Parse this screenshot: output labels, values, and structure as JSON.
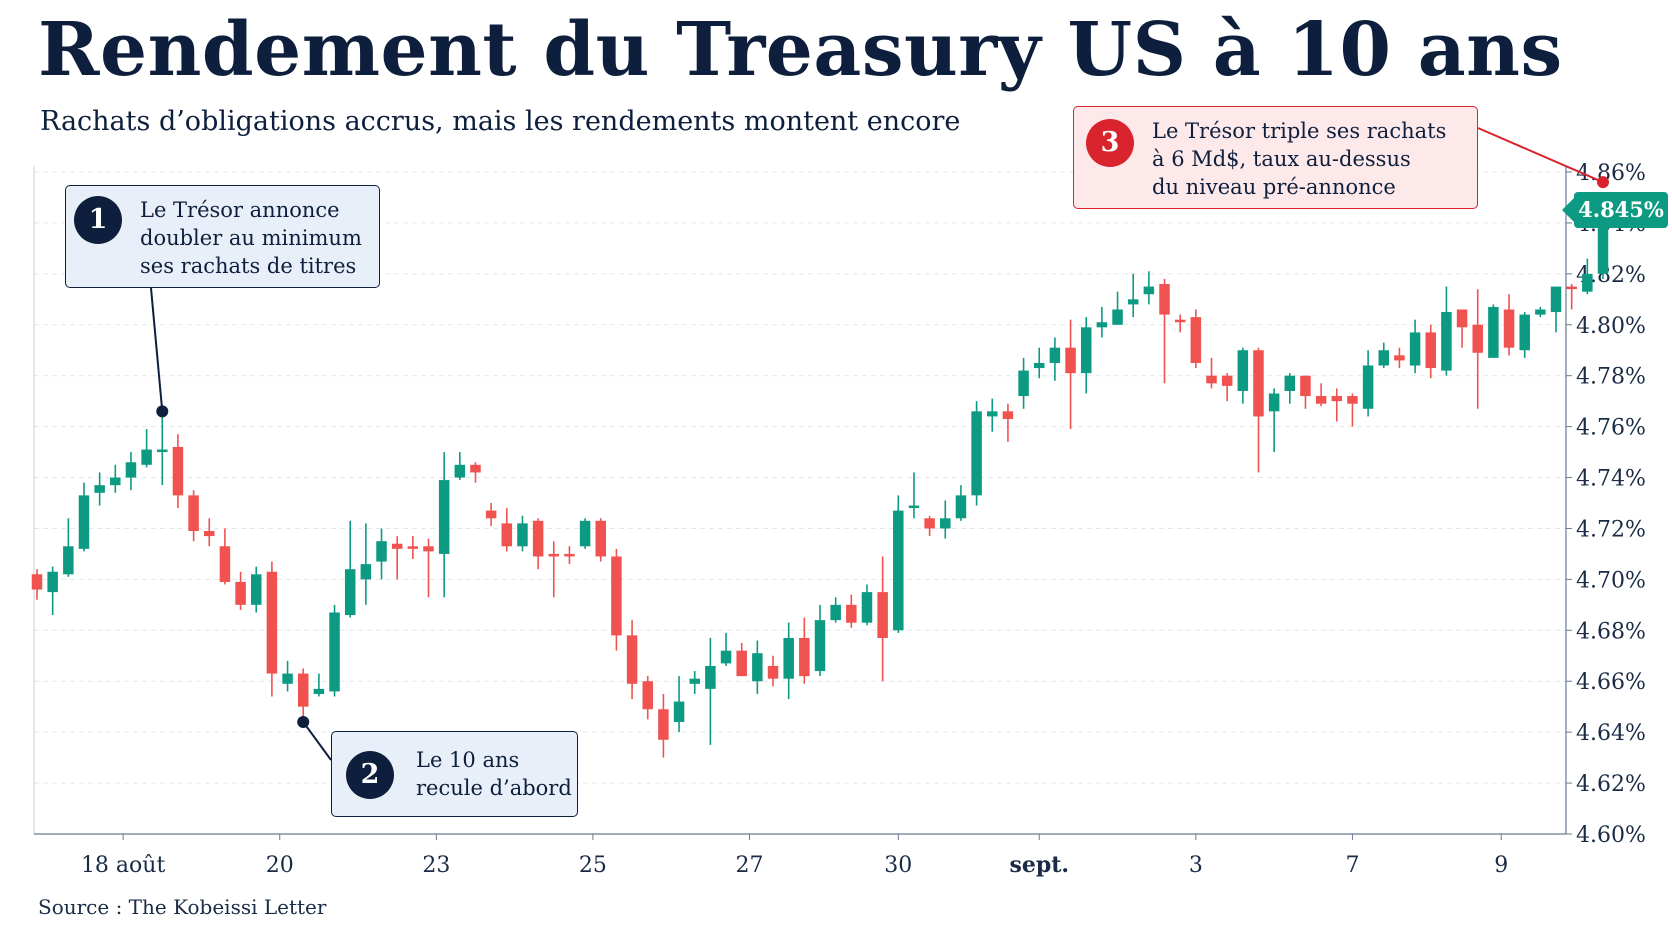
{
  "title": "Rendement du Treasury US à 10 ans",
  "subtitle": "Rachats d’obligations accrus, mais les rendements montent encore",
  "source": "Source : The Kobeissi Letter",
  "last_value_label": "4.845%",
  "colors": {
    "up": "#0d9a82",
    "down": "#f0524f",
    "navy": "#0d1f3c",
    "accent_red": "#d9232d"
  },
  "callouts": [
    {
      "num": "1",
      "text": "Le Trésor annonce\ndoubler au minimum\nses rachats de titres"
    },
    {
      "num": "2",
      "text": "Le 10 ans\nrecule d’abord"
    },
    {
      "num": "3",
      "text": "Le Trésor triple ses rachats\nà 6 Md$, taux au-dessus\ndu niveau pré-annonce"
    }
  ],
  "chart_data": {
    "type": "candlestick",
    "title": "Rendement du Treasury US à 10 ans",
    "subtitle": "Rachats d’obligations accrus, mais les rendements montent encore",
    "y_unit": "%",
    "ylim": [
      4.6,
      4.86
    ],
    "y_ticks": [
      "4.60%",
      "4.62%",
      "4.64%",
      "4.66%",
      "4.68%",
      "4.70%",
      "4.72%",
      "4.74%",
      "4.76%",
      "4.78%",
      "4.80%",
      "4.82%",
      "4.84%",
      "4.86%"
    ],
    "x_labels": [
      {
        "label": "18 août",
        "index": 5.5,
        "bold": false
      },
      {
        "label": "20",
        "index": 15.5,
        "bold": false
      },
      {
        "label": "23",
        "index": 25.5,
        "bold": false
      },
      {
        "label": "25",
        "index": 35.5,
        "bold": false
      },
      {
        "label": "27",
        "index": 45.5,
        "bold": false
      },
      {
        "label": "30",
        "index": 55,
        "bold": false
      },
      {
        "label": "sept.",
        "index": 64,
        "bold": true
      },
      {
        "label": "3",
        "index": 74,
        "bold": false
      },
      {
        "label": "7",
        "index": 84,
        "bold": false
      },
      {
        "label": "9",
        "index": 93.5,
        "bold": false
      }
    ],
    "candles": [
      [
        4.702,
        4.696,
        4.704,
        4.692
      ],
      [
        4.695,
        4.703,
        4.705,
        4.686
      ],
      [
        4.702,
        4.713,
        4.724,
        4.701
      ],
      [
        4.712,
        4.733,
        4.738,
        4.711
      ],
      [
        4.734,
        4.737,
        4.742,
        4.729
      ],
      [
        4.737,
        4.74,
        4.745,
        4.734
      ],
      [
        4.74,
        4.746,
        4.75,
        4.735
      ],
      [
        4.745,
        4.751,
        4.759,
        4.744
      ],
      [
        4.75,
        4.751,
        4.766,
        4.737
      ],
      [
        4.752,
        4.733,
        4.757,
        4.728
      ],
      [
        4.733,
        4.719,
        4.735,
        4.715
      ],
      [
        4.719,
        4.717,
        4.724,
        4.713
      ],
      [
        4.713,
        4.699,
        4.72,
        4.698
      ],
      [
        4.699,
        4.69,
        4.703,
        4.688
      ],
      [
        4.69,
        4.702,
        4.705,
        4.687
      ],
      [
        4.703,
        4.663,
        4.707,
        4.654
      ],
      [
        4.659,
        4.663,
        4.668,
        4.656
      ],
      [
        4.663,
        4.65,
        4.665,
        4.646
      ],
      [
        4.655,
        4.657,
        4.663,
        4.654
      ],
      [
        4.656,
        4.687,
        4.69,
        4.654
      ],
      [
        4.686,
        4.704,
        4.723,
        4.685
      ],
      [
        4.7,
        4.706,
        4.722,
        4.69
      ],
      [
        4.707,
        4.715,
        4.72,
        4.7
      ],
      [
        4.714,
        4.712,
        4.717,
        4.7
      ],
      [
        4.713,
        4.712,
        4.717,
        4.708
      ],
      [
        4.713,
        4.711,
        4.716,
        4.693
      ],
      [
        4.71,
        4.739,
        4.75,
        4.693
      ],
      [
        4.74,
        4.745,
        4.75,
        4.739
      ],
      [
        4.745,
        4.742,
        4.746,
        4.738
      ],
      [
        4.727,
        4.724,
        4.73,
        4.721
      ],
      [
        4.722,
        4.713,
        4.728,
        4.711
      ],
      [
        4.713,
        4.722,
        4.725,
        4.711
      ],
      [
        4.723,
        4.709,
        4.724,
        4.704
      ],
      [
        4.71,
        4.709,
        4.715,
        4.693
      ],
      [
        4.71,
        4.709,
        4.713,
        4.706
      ],
      [
        4.713,
        4.723,
        4.724,
        4.712
      ],
      [
        4.723,
        4.709,
        4.724,
        4.707
      ],
      [
        4.709,
        4.678,
        4.712,
        4.672
      ],
      [
        4.678,
        4.659,
        4.684,
        4.653
      ],
      [
        4.66,
        4.649,
        4.662,
        4.645
      ],
      [
        4.649,
        4.637,
        4.655,
        4.63
      ],
      [
        4.644,
        4.652,
        4.662,
        4.64
      ],
      [
        4.659,
        4.661,
        4.664,
        4.655
      ],
      [
        4.657,
        4.666,
        4.677,
        4.635
      ],
      [
        4.667,
        4.672,
        4.679,
        4.666
      ],
      [
        4.672,
        4.662,
        4.675,
        4.662
      ],
      [
        4.66,
        4.671,
        4.676,
        4.655
      ],
      [
        4.666,
        4.661,
        4.67,
        4.658
      ],
      [
        4.661,
        4.677,
        4.683,
        4.653
      ],
      [
        4.677,
        4.662,
        4.685,
        4.659
      ],
      [
        4.664,
        4.684,
        4.69,
        4.662
      ],
      [
        4.684,
        4.69,
        4.693,
        4.683
      ],
      [
        4.69,
        4.683,
        4.694,
        4.681
      ],
      [
        4.683,
        4.695,
        4.698,
        4.682
      ],
      [
        4.695,
        4.677,
        4.709,
        4.66
      ],
      [
        4.68,
        4.727,
        4.733,
        4.679
      ],
      [
        4.729,
        4.729,
        4.742,
        4.724
      ],
      [
        4.724,
        4.72,
        4.725,
        4.717
      ],
      [
        4.72,
        4.724,
        4.731,
        4.716
      ],
      [
        4.724,
        4.733,
        4.737,
        4.723
      ],
      [
        4.733,
        4.766,
        4.77,
        4.729
      ],
      [
        4.764,
        4.766,
        4.771,
        4.758
      ],
      [
        4.766,
        4.763,
        4.769,
        4.754
      ],
      [
        4.772,
        4.782,
        4.787,
        4.767
      ],
      [
        4.783,
        4.785,
        4.791,
        4.779
      ],
      [
        4.785,
        4.791,
        4.795,
        4.778
      ],
      [
        4.791,
        4.781,
        4.802,
        4.759
      ],
      [
        4.781,
        4.799,
        4.803,
        4.773
      ],
      [
        4.799,
        4.801,
        4.807,
        4.795
      ],
      [
        4.8,
        4.806,
        4.813,
        4.8
      ],
      [
        4.808,
        4.81,
        4.82,
        4.803
      ],
      [
        4.812,
        4.815,
        4.821,
        4.808
      ],
      [
        4.816,
        4.804,
        4.818,
        4.777
      ],
      [
        4.802,
        4.801,
        4.804,
        4.797
      ],
      [
        4.803,
        4.785,
        4.806,
        4.783
      ],
      [
        4.78,
        4.777,
        4.787,
        4.775
      ],
      [
        4.78,
        4.776,
        4.781,
        4.77
      ],
      [
        4.774,
        4.79,
        4.791,
        4.769
      ],
      [
        4.79,
        4.764,
        4.791,
        4.742
      ],
      [
        4.766,
        4.773,
        4.775,
        4.75
      ],
      [
        4.774,
        4.78,
        4.781,
        4.769
      ],
      [
        4.78,
        4.772,
        4.78,
        4.767
      ],
      [
        4.772,
        4.769,
        4.777,
        4.768
      ],
      [
        4.772,
        4.77,
        4.775,
        4.762
      ],
      [
        4.772,
        4.769,
        4.773,
        4.76
      ],
      [
        4.767,
        4.784,
        4.79,
        4.764
      ],
      [
        4.784,
        4.79,
        4.793,
        4.783
      ],
      [
        4.788,
        4.786,
        4.791,
        4.783
      ],
      [
        4.784,
        4.797,
        4.802,
        4.781
      ],
      [
        4.797,
        4.783,
        4.8,
        4.779
      ],
      [
        4.782,
        4.805,
        4.815,
        4.78
      ],
      [
        4.806,
        4.799,
        4.806,
        4.791
      ],
      [
        4.8,
        4.789,
        4.814,
        4.767
      ],
      [
        4.787,
        4.807,
        4.808,
        4.787
      ],
      [
        4.806,
        4.791,
        4.812,
        4.788
      ],
      [
        4.79,
        4.804,
        4.805,
        4.787
      ],
      [
        4.804,
        4.806,
        4.807,
        4.803
      ],
      [
        4.805,
        4.815,
        4.815,
        4.797
      ],
      [
        4.815,
        4.814,
        4.816,
        4.806
      ],
      [
        4.813,
        4.82,
        4.826,
        4.812
      ],
      [
        4.82,
        4.845,
        4.85,
        4.818
      ]
    ],
    "annotation_points": [
      {
        "callout": 1,
        "index": 8,
        "value": 4.766
      },
      {
        "callout": 2,
        "index": 17,
        "value": 4.644
      },
      {
        "callout": 3,
        "index": 100,
        "value": 4.856
      }
    ]
  }
}
